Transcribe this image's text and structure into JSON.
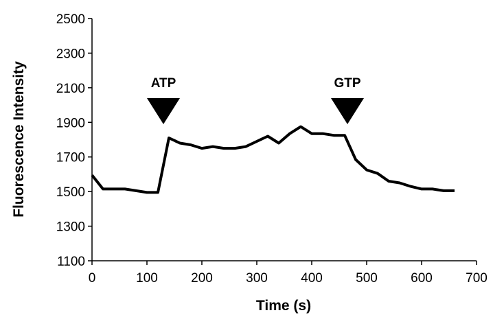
{
  "chart_data": {
    "type": "line",
    "xlabel": "Time (s)",
    "ylabel": "Fluorescence Intensity",
    "xlim": [
      0,
      700
    ],
    "ylim": [
      1100,
      2500
    ],
    "x_ticks": [
      0,
      100,
      200,
      300,
      400,
      500,
      600,
      700
    ],
    "y_ticks": [
      1100,
      1300,
      1500,
      1700,
      1900,
      2100,
      2300,
      2500
    ],
    "grid": false,
    "legend": "none",
    "series": [
      {
        "x": [
          0,
          20,
          40,
          60,
          80,
          100,
          120,
          140,
          160,
          180,
          200,
          220,
          240,
          260,
          280,
          300,
          320,
          340,
          360,
          380,
          400,
          420,
          440,
          460,
          480,
          500,
          520,
          540,
          560,
          580,
          600,
          620,
          640,
          660
        ],
        "y": [
          1595,
          1515,
          1515,
          1515,
          1505,
          1495,
          1495,
          1810,
          1780,
          1770,
          1750,
          1760,
          1750,
          1750,
          1760,
          1790,
          1820,
          1780,
          1835,
          1875,
          1835,
          1835,
          1825,
          1825,
          1685,
          1625,
          1605,
          1560,
          1550,
          1530,
          1515,
          1515,
          1505,
          1505
        ],
        "color": "#000000"
      }
    ],
    "annotations": [
      {
        "label": "ATP",
        "x": 130,
        "marker": "down-triangle"
      },
      {
        "label": "GTP",
        "x": 465,
        "marker": "down-triangle"
      }
    ]
  }
}
